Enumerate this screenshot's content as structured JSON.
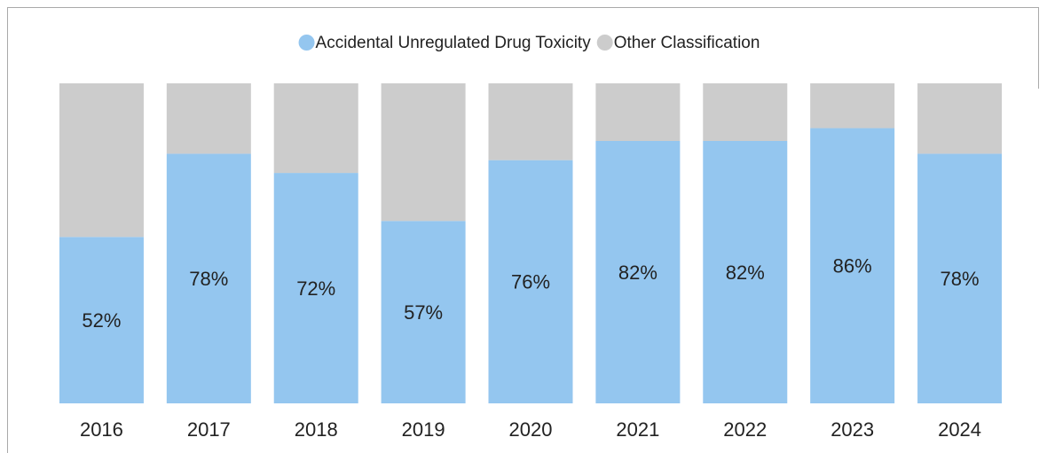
{
  "chart_data": {
    "type": "stacked_bar_100",
    "categories": [
      "2016",
      "2017",
      "2018",
      "2019",
      "2020",
      "2021",
      "2022",
      "2023",
      "2024"
    ],
    "ylim": [
      0,
      100
    ],
    "series": [
      {
        "name": "Accidental Unregulated Drug Toxicity",
        "color": "#94c6ef",
        "values": [
          52,
          78,
          72,
          57,
          76,
          82,
          82,
          86,
          78
        ],
        "value_labels": [
          "52%",
          "78%",
          "72%",
          "57%",
          "76%",
          "82%",
          "82%",
          "86%",
          "78%"
        ]
      },
      {
        "name": "Other Classification",
        "color": "#cccccc",
        "values": [
          48,
          22,
          28,
          43,
          24,
          18,
          18,
          14,
          22
        ]
      }
    ],
    "legend": "top"
  }
}
